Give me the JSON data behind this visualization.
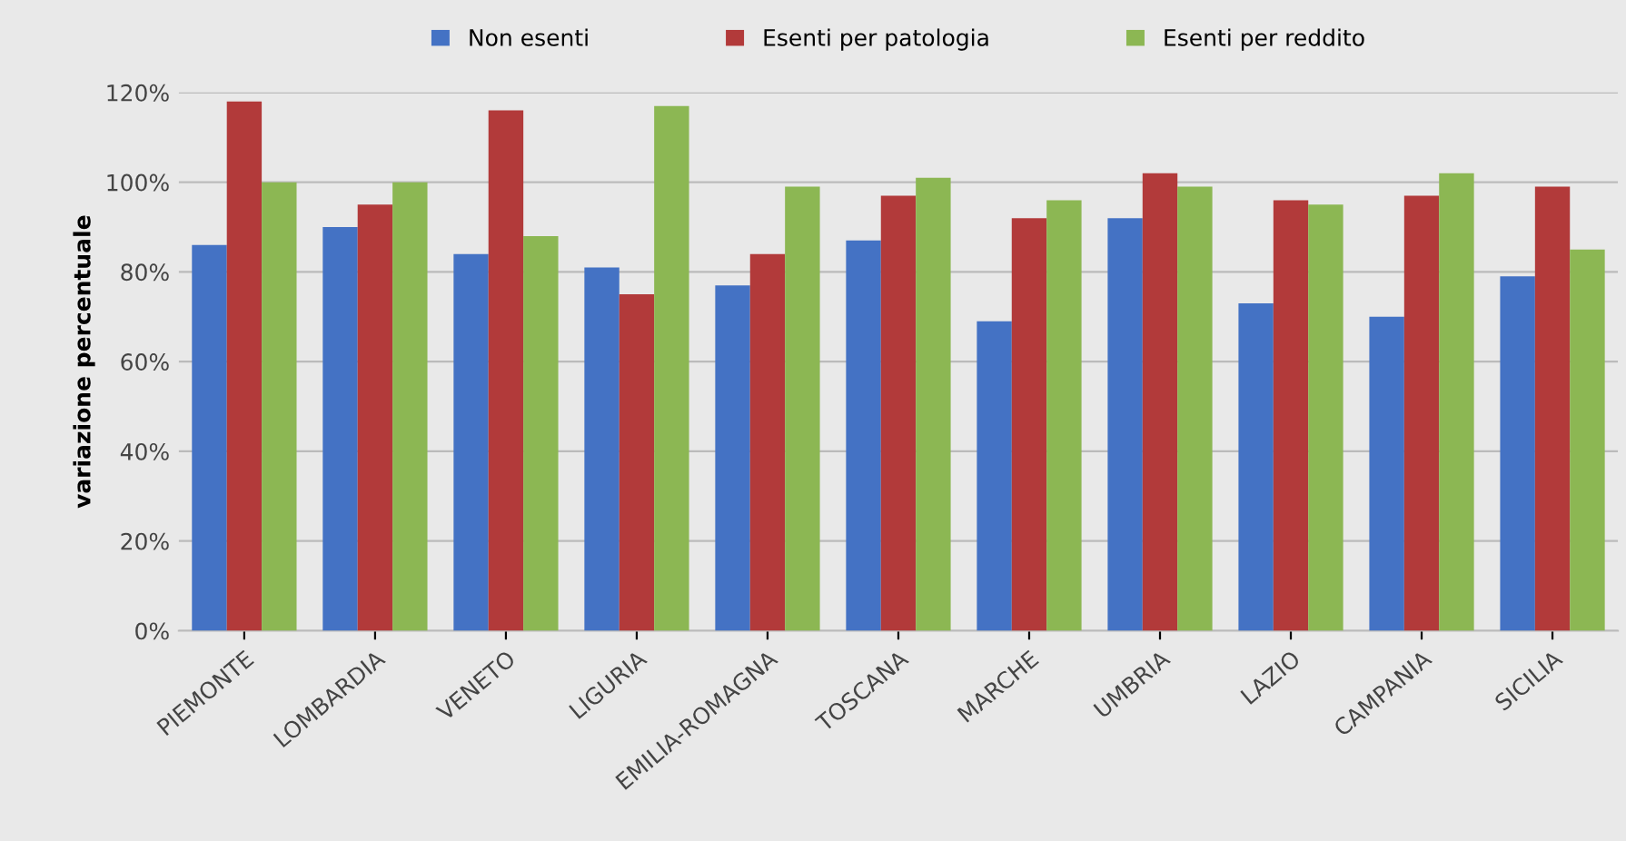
{
  "chart_data": {
    "type": "bar",
    "ylabel": "variazione percentuale",
    "categories": [
      "PIEMONTE",
      "LOMBARDIA",
      "VENETO",
      "LIGURIA",
      "EMILIA-ROMAGNA",
      "TOSCANA",
      "MARCHE",
      "UMBRIA",
      "LAZIO",
      "CAMPANIA",
      "SICILIA"
    ],
    "series": [
      {
        "name": "Non esenti",
        "color": "#4472c4",
        "values": [
          86,
          90,
          84,
          81,
          77,
          87,
          69,
          92,
          73,
          70,
          79
        ]
      },
      {
        "name": "Esenti per patologia",
        "color": "#b23a3a",
        "values": [
          118,
          95,
          116,
          75,
          84,
          97,
          92,
          102,
          96,
          97,
          99
        ]
      },
      {
        "name": "Esenti per reddito",
        "color": "#8cb753",
        "values": [
          100,
          100,
          88,
          117,
          99,
          101,
          96,
          99,
          95,
          102,
          85
        ]
      }
    ],
    "ylim": [
      0,
      120
    ],
    "yticks": [
      {
        "value": 0,
        "label": "0%"
      },
      {
        "value": 20,
        "label": "20%"
      },
      {
        "value": 40,
        "label": "40%"
      },
      {
        "value": 60,
        "label": "60%"
      },
      {
        "value": 80,
        "label": "80%"
      },
      {
        "value": 100,
        "label": "100%"
      },
      {
        "value": 120,
        "label": "120%"
      }
    ],
    "grid": "y",
    "legend": "top"
  }
}
